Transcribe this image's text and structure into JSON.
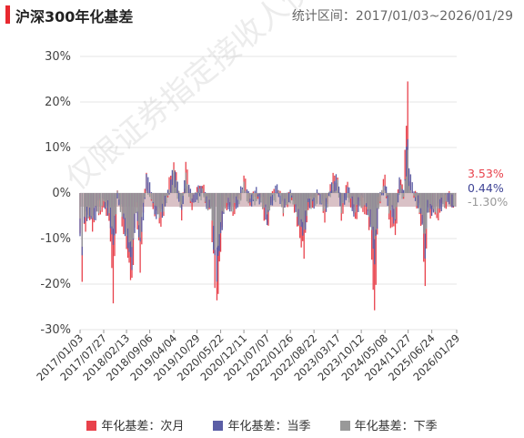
{
  "header": {
    "title": "沪深300年化基差",
    "period": "统计区间：2017/01/03~2026/01/29"
  },
  "watermark": "仅限证券指定接收人使用",
  "chart_data": {
    "type": "area",
    "title": "沪深300年化基差",
    "ylim": [
      -30,
      30
    ],
    "y_ticks": [
      "30%",
      "20%",
      "10%",
      "0%",
      "-10%",
      "-20%",
      "-30%"
    ],
    "x_ticks": [
      "2017/01/03",
      "2017/07/27",
      "2018/02/13",
      "2018/09/06",
      "2019/04/04",
      "2019/10/29",
      "2020/05/22",
      "2020/12/11",
      "2021/07/07",
      "2022/01/26",
      "2022/08/22",
      "2023/03/17",
      "2023/10/12",
      "2024/05/08",
      "2024/11/27",
      "2025/06/24",
      "2026/01/29"
    ],
    "x_tick_dates": [
      2017.0,
      2017.57,
      2018.12,
      2018.68,
      2019.26,
      2019.82,
      2020.39,
      2020.95,
      2021.51,
      2022.07,
      2022.64,
      2023.21,
      2023.78,
      2024.35,
      2024.91,
      2025.48,
      2026.08
    ],
    "series": [
      {
        "name": "年化基差：次月",
        "color": "#e8414b",
        "end_label": "3.53%",
        "points": [
          [
            2017.0,
            -10
          ],
          [
            2017.05,
            -18
          ],
          [
            2017.1,
            -8
          ],
          [
            2017.2,
            -5
          ],
          [
            2017.3,
            -7
          ],
          [
            2017.45,
            -4
          ],
          [
            2017.57,
            -2
          ],
          [
            2017.7,
            -5
          ],
          [
            2017.8,
            -23
          ],
          [
            2017.9,
            0
          ],
          [
            2018.05,
            -8
          ],
          [
            2018.12,
            -12
          ],
          [
            2018.25,
            -20
          ],
          [
            2018.35,
            -3
          ],
          [
            2018.45,
            -16
          ],
          [
            2018.6,
            5
          ],
          [
            2018.68,
            2
          ],
          [
            2018.8,
            -5
          ],
          [
            2018.95,
            -6
          ],
          [
            2019.05,
            -3
          ],
          [
            2019.15,
            2
          ],
          [
            2019.26,
            7
          ],
          [
            2019.35,
            2
          ],
          [
            2019.45,
            -5
          ],
          [
            2019.55,
            6
          ],
          [
            2019.7,
            -3
          ],
          [
            2019.82,
            0
          ],
          [
            2019.95,
            2
          ],
          [
            2020.05,
            -2
          ],
          [
            2020.15,
            -4
          ],
          [
            2020.25,
            -20
          ],
          [
            2020.3,
            -25
          ],
          [
            2020.39,
            -12
          ],
          [
            2020.5,
            -2
          ],
          [
            2020.65,
            -4
          ],
          [
            2020.8,
            -3
          ],
          [
            2020.95,
            3
          ],
          [
            2021.1,
            -2
          ],
          [
            2021.25,
            0
          ],
          [
            2021.4,
            -3
          ],
          [
            2021.51,
            -8
          ],
          [
            2021.6,
            -2
          ],
          [
            2021.75,
            2
          ],
          [
            2021.9,
            -4
          ],
          [
            2022.07,
            0
          ],
          [
            2022.2,
            -4
          ],
          [
            2022.3,
            -10
          ],
          [
            2022.4,
            -13
          ],
          [
            2022.5,
            -3
          ],
          [
            2022.64,
            -2
          ],
          [
            2022.75,
            0
          ],
          [
            2022.9,
            -5
          ],
          [
            2023.0,
            0
          ],
          [
            2023.1,
            3
          ],
          [
            2023.21,
            4
          ],
          [
            2023.3,
            -5
          ],
          [
            2023.45,
            2
          ],
          [
            2023.6,
            -6
          ],
          [
            2023.78,
            -2
          ],
          [
            2023.9,
            -4
          ],
          [
            2024.0,
            -8
          ],
          [
            2024.1,
            -27
          ],
          [
            2024.2,
            -2
          ],
          [
            2024.35,
            3
          ],
          [
            2024.45,
            -5
          ],
          [
            2024.6,
            -10
          ],
          [
            2024.7,
            4
          ],
          [
            2024.8,
            0
          ],
          [
            2024.9,
            24
          ],
          [
            2024.93,
            6
          ],
          [
            2025.05,
            0
          ],
          [
            2025.15,
            -3
          ],
          [
            2025.25,
            -8
          ],
          [
            2025.32,
            -20
          ],
          [
            2025.38,
            -4
          ],
          [
            2025.48,
            -5
          ],
          [
            2025.6,
            -5
          ],
          [
            2025.75,
            -3
          ],
          [
            2025.9,
            -1
          ],
          [
            2026.0,
            -4
          ],
          [
            2026.08,
            3.53
          ]
        ]
      },
      {
        "name": "年化基差：当季",
        "color": "#5b5ea6",
        "end_label": "0.44%",
        "points": [
          [
            2017.0,
            -8
          ],
          [
            2017.05,
            -15
          ],
          [
            2017.1,
            -6
          ],
          [
            2017.2,
            -4
          ],
          [
            2017.3,
            -6
          ],
          [
            2017.45,
            -3
          ],
          [
            2017.57,
            -2
          ],
          [
            2017.7,
            -4
          ],
          [
            2017.8,
            -12
          ],
          [
            2017.9,
            0
          ],
          [
            2018.05,
            -6
          ],
          [
            2018.12,
            -10
          ],
          [
            2018.25,
            -16
          ],
          [
            2018.35,
            -3
          ],
          [
            2018.45,
            -12
          ],
          [
            2018.6,
            3
          ],
          [
            2018.68,
            1
          ],
          [
            2018.8,
            -4
          ],
          [
            2018.95,
            -5
          ],
          [
            2019.05,
            -2
          ],
          [
            2019.15,
            1
          ],
          [
            2019.26,
            5
          ],
          [
            2019.35,
            1
          ],
          [
            2019.45,
            -4
          ],
          [
            2019.55,
            4
          ],
          [
            2019.7,
            -2
          ],
          [
            2019.82,
            0
          ],
          [
            2019.95,
            1
          ],
          [
            2020.05,
            -2
          ],
          [
            2020.15,
            -3
          ],
          [
            2020.25,
            -15
          ],
          [
            2020.3,
            -18
          ],
          [
            2020.39,
            -9
          ],
          [
            2020.5,
            -2
          ],
          [
            2020.65,
            -3
          ],
          [
            2020.8,
            -2
          ],
          [
            2020.95,
            2
          ],
          [
            2021.1,
            -2
          ],
          [
            2021.25,
            0
          ],
          [
            2021.4,
            -2
          ],
          [
            2021.51,
            -6
          ],
          [
            2021.6,
            -2
          ],
          [
            2021.75,
            1
          ],
          [
            2021.9,
            -3
          ],
          [
            2022.07,
            0
          ],
          [
            2022.2,
            -3
          ],
          [
            2022.3,
            -7
          ],
          [
            2022.4,
            -9
          ],
          [
            2022.5,
            -2
          ],
          [
            2022.64,
            -2
          ],
          [
            2022.75,
            0
          ],
          [
            2022.9,
            -4
          ],
          [
            2023.0,
            0
          ],
          [
            2023.1,
            2
          ],
          [
            2023.21,
            3
          ],
          [
            2023.3,
            -4
          ],
          [
            2023.45,
            1
          ],
          [
            2023.6,
            -4
          ],
          [
            2023.78,
            -2
          ],
          [
            2023.9,
            -3
          ],
          [
            2024.0,
            -6
          ],
          [
            2024.1,
            -15
          ],
          [
            2024.2,
            -2
          ],
          [
            2024.35,
            2
          ],
          [
            2024.45,
            -3
          ],
          [
            2024.6,
            -6
          ],
          [
            2024.7,
            2
          ],
          [
            2024.8,
            0
          ],
          [
            2024.9,
            13
          ],
          [
            2024.93,
            4
          ],
          [
            2025.05,
            0
          ],
          [
            2025.15,
            -2
          ],
          [
            2025.25,
            -6
          ],
          [
            2025.32,
            -14
          ],
          [
            2025.38,
            -3
          ],
          [
            2025.48,
            -4
          ],
          [
            2025.6,
            -4
          ],
          [
            2025.75,
            -2
          ],
          [
            2025.9,
            -1
          ],
          [
            2026.0,
            -3
          ],
          [
            2026.08,
            0.44
          ]
        ]
      },
      {
        "name": "年化基差：下季",
        "color": "#999999",
        "end_label": "-1.30%",
        "points": [
          [
            2017.0,
            -7
          ],
          [
            2017.05,
            -11
          ],
          [
            2017.1,
            -5
          ],
          [
            2017.2,
            -4
          ],
          [
            2017.3,
            -5
          ],
          [
            2017.45,
            -3
          ],
          [
            2017.57,
            -2
          ],
          [
            2017.7,
            -3
          ],
          [
            2017.8,
            -8
          ],
          [
            2017.9,
            -1
          ],
          [
            2018.05,
            -5
          ],
          [
            2018.12,
            -8
          ],
          [
            2018.25,
            -12
          ],
          [
            2018.35,
            -3
          ],
          [
            2018.45,
            -9
          ],
          [
            2018.6,
            2
          ],
          [
            2018.68,
            0
          ],
          [
            2018.8,
            -4
          ],
          [
            2018.95,
            -4
          ],
          [
            2019.05,
            -2
          ],
          [
            2019.15,
            0
          ],
          [
            2019.26,
            4
          ],
          [
            2019.35,
            0
          ],
          [
            2019.45,
            -3
          ],
          [
            2019.55,
            3
          ],
          [
            2019.7,
            -2
          ],
          [
            2019.82,
            -1
          ],
          [
            2019.95,
            0
          ],
          [
            2020.05,
            -2
          ],
          [
            2020.15,
            -3
          ],
          [
            2020.25,
            -11
          ],
          [
            2020.3,
            -13
          ],
          [
            2020.39,
            -7
          ],
          [
            2020.5,
            -2
          ],
          [
            2020.65,
            -3
          ],
          [
            2020.8,
            -2
          ],
          [
            2020.95,
            1
          ],
          [
            2021.1,
            -2
          ],
          [
            2021.25,
            -1
          ],
          [
            2021.4,
            -2
          ],
          [
            2021.51,
            -5
          ],
          [
            2021.6,
            -2
          ],
          [
            2021.75,
            0
          ],
          [
            2021.9,
            -3
          ],
          [
            2022.07,
            -1
          ],
          [
            2022.2,
            -3
          ],
          [
            2022.3,
            -6
          ],
          [
            2022.4,
            -7
          ],
          [
            2022.5,
            -2
          ],
          [
            2022.64,
            -2
          ],
          [
            2022.75,
            -1
          ],
          [
            2022.9,
            -3
          ],
          [
            2023.0,
            -1
          ],
          [
            2023.1,
            1
          ],
          [
            2023.21,
            2
          ],
          [
            2023.3,
            -3
          ],
          [
            2023.45,
            0
          ],
          [
            2023.6,
            -3
          ],
          [
            2023.78,
            -2
          ],
          [
            2023.9,
            -3
          ],
          [
            2024.0,
            -5
          ],
          [
            2024.1,
            -10
          ],
          [
            2024.2,
            -2
          ],
          [
            2024.35,
            1
          ],
          [
            2024.45,
            -3
          ],
          [
            2024.6,
            -5
          ],
          [
            2024.7,
            1
          ],
          [
            2024.8,
            -1
          ],
          [
            2024.9,
            8
          ],
          [
            2024.93,
            3
          ],
          [
            2025.05,
            -1
          ],
          [
            2025.15,
            -2
          ],
          [
            2025.25,
            -5
          ],
          [
            2025.32,
            -10
          ],
          [
            2025.38,
            -3
          ],
          [
            2025.48,
            -3
          ],
          [
            2025.6,
            -3
          ],
          [
            2025.75,
            -2
          ],
          [
            2025.9,
            -1
          ],
          [
            2026.0,
            -2
          ],
          [
            2026.08,
            -1.3
          ]
        ]
      }
    ],
    "legend_position": "bottom",
    "grid": true
  },
  "legend": {
    "items": [
      {
        "label": "年化基差：次月",
        "color": "#e8414b"
      },
      {
        "label": "年化基差：当季",
        "color": "#5b5ea6"
      },
      {
        "label": "年化基差：下季",
        "color": "#999999"
      }
    ]
  }
}
